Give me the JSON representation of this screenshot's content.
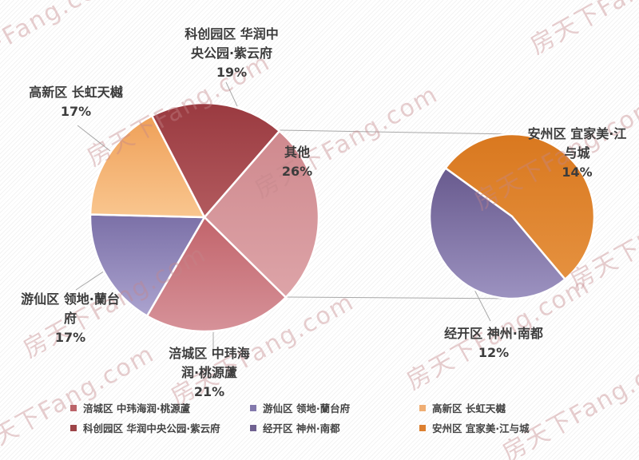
{
  "watermark": {
    "text": "房天下Fang.com",
    "color": "#c4868a"
  },
  "chart_data": {
    "type": "pie",
    "subtype": "pie-of-pie",
    "title": "",
    "unit": "%",
    "legend_position": "bottom",
    "main_pie": {
      "start_angle": 41,
      "slices": [
        {
          "name": "其他",
          "value": 26,
          "color": "#cf898e",
          "color2": "#dda4a8"
        },
        {
          "name": "涪城区 中玮海润·桃源蘆",
          "value": 21,
          "color": "#c2646b",
          "color2": "#d69299"
        },
        {
          "name": "游仙区 领地·蘭台府",
          "value": 17,
          "color": "#7b70a7",
          "color2": "#aba3cf"
        },
        {
          "name": "高新区 长虹天樾",
          "value": 17,
          "color": "#efa058",
          "color2": "#f9c68f"
        },
        {
          "name": "科创园区 华润中央公园·紫云府",
          "value": 19,
          "color": "#9a3a40",
          "color2": "#b25a5e"
        }
      ]
    },
    "secondary_pie": {
      "represents": "其他",
      "start_angle": 306,
      "slices": [
        {
          "name": "安州区 宜家美·江与城",
          "value": 14,
          "color": "#d9781f",
          "color2": "#e5913f"
        },
        {
          "name": "经开区 神州·南都",
          "value": 12,
          "color": "#685a8e",
          "color2": "#9c92c0"
        }
      ]
    },
    "callouts": [
      {
        "text": "科创园区 华润中\n央公园·紫云府\n19%"
      },
      {
        "text": "高新区 长虹天樾\n17%"
      },
      {
        "text": "其他\n26%"
      },
      {
        "text": "游仙区 领地·蘭台\n府\n17%"
      },
      {
        "text": "涪城区 中玮海\n润·桃源蘆\n21%"
      },
      {
        "text": "安州区 宜家美·江\n与城\n14%"
      },
      {
        "text": "经开区 神州·南都\n12%"
      }
    ],
    "legend": [
      {
        "label": "涪城区 中玮海润·桃源蘆",
        "color": "#bb6368"
      },
      {
        "label": "游仙区 领地·蘭台府",
        "color": "#8379ac"
      },
      {
        "label": "高新区 长虹天樾",
        "color": "#efae74"
      },
      {
        "label": "科创园区 华润中央公园·紫云府",
        "color": "#9c4347"
      },
      {
        "label": "经开区 神州·南都",
        "color": "#6f6190"
      },
      {
        "label": "安州区 宜家美·江与城",
        "color": "#dc7f2f"
      }
    ]
  }
}
